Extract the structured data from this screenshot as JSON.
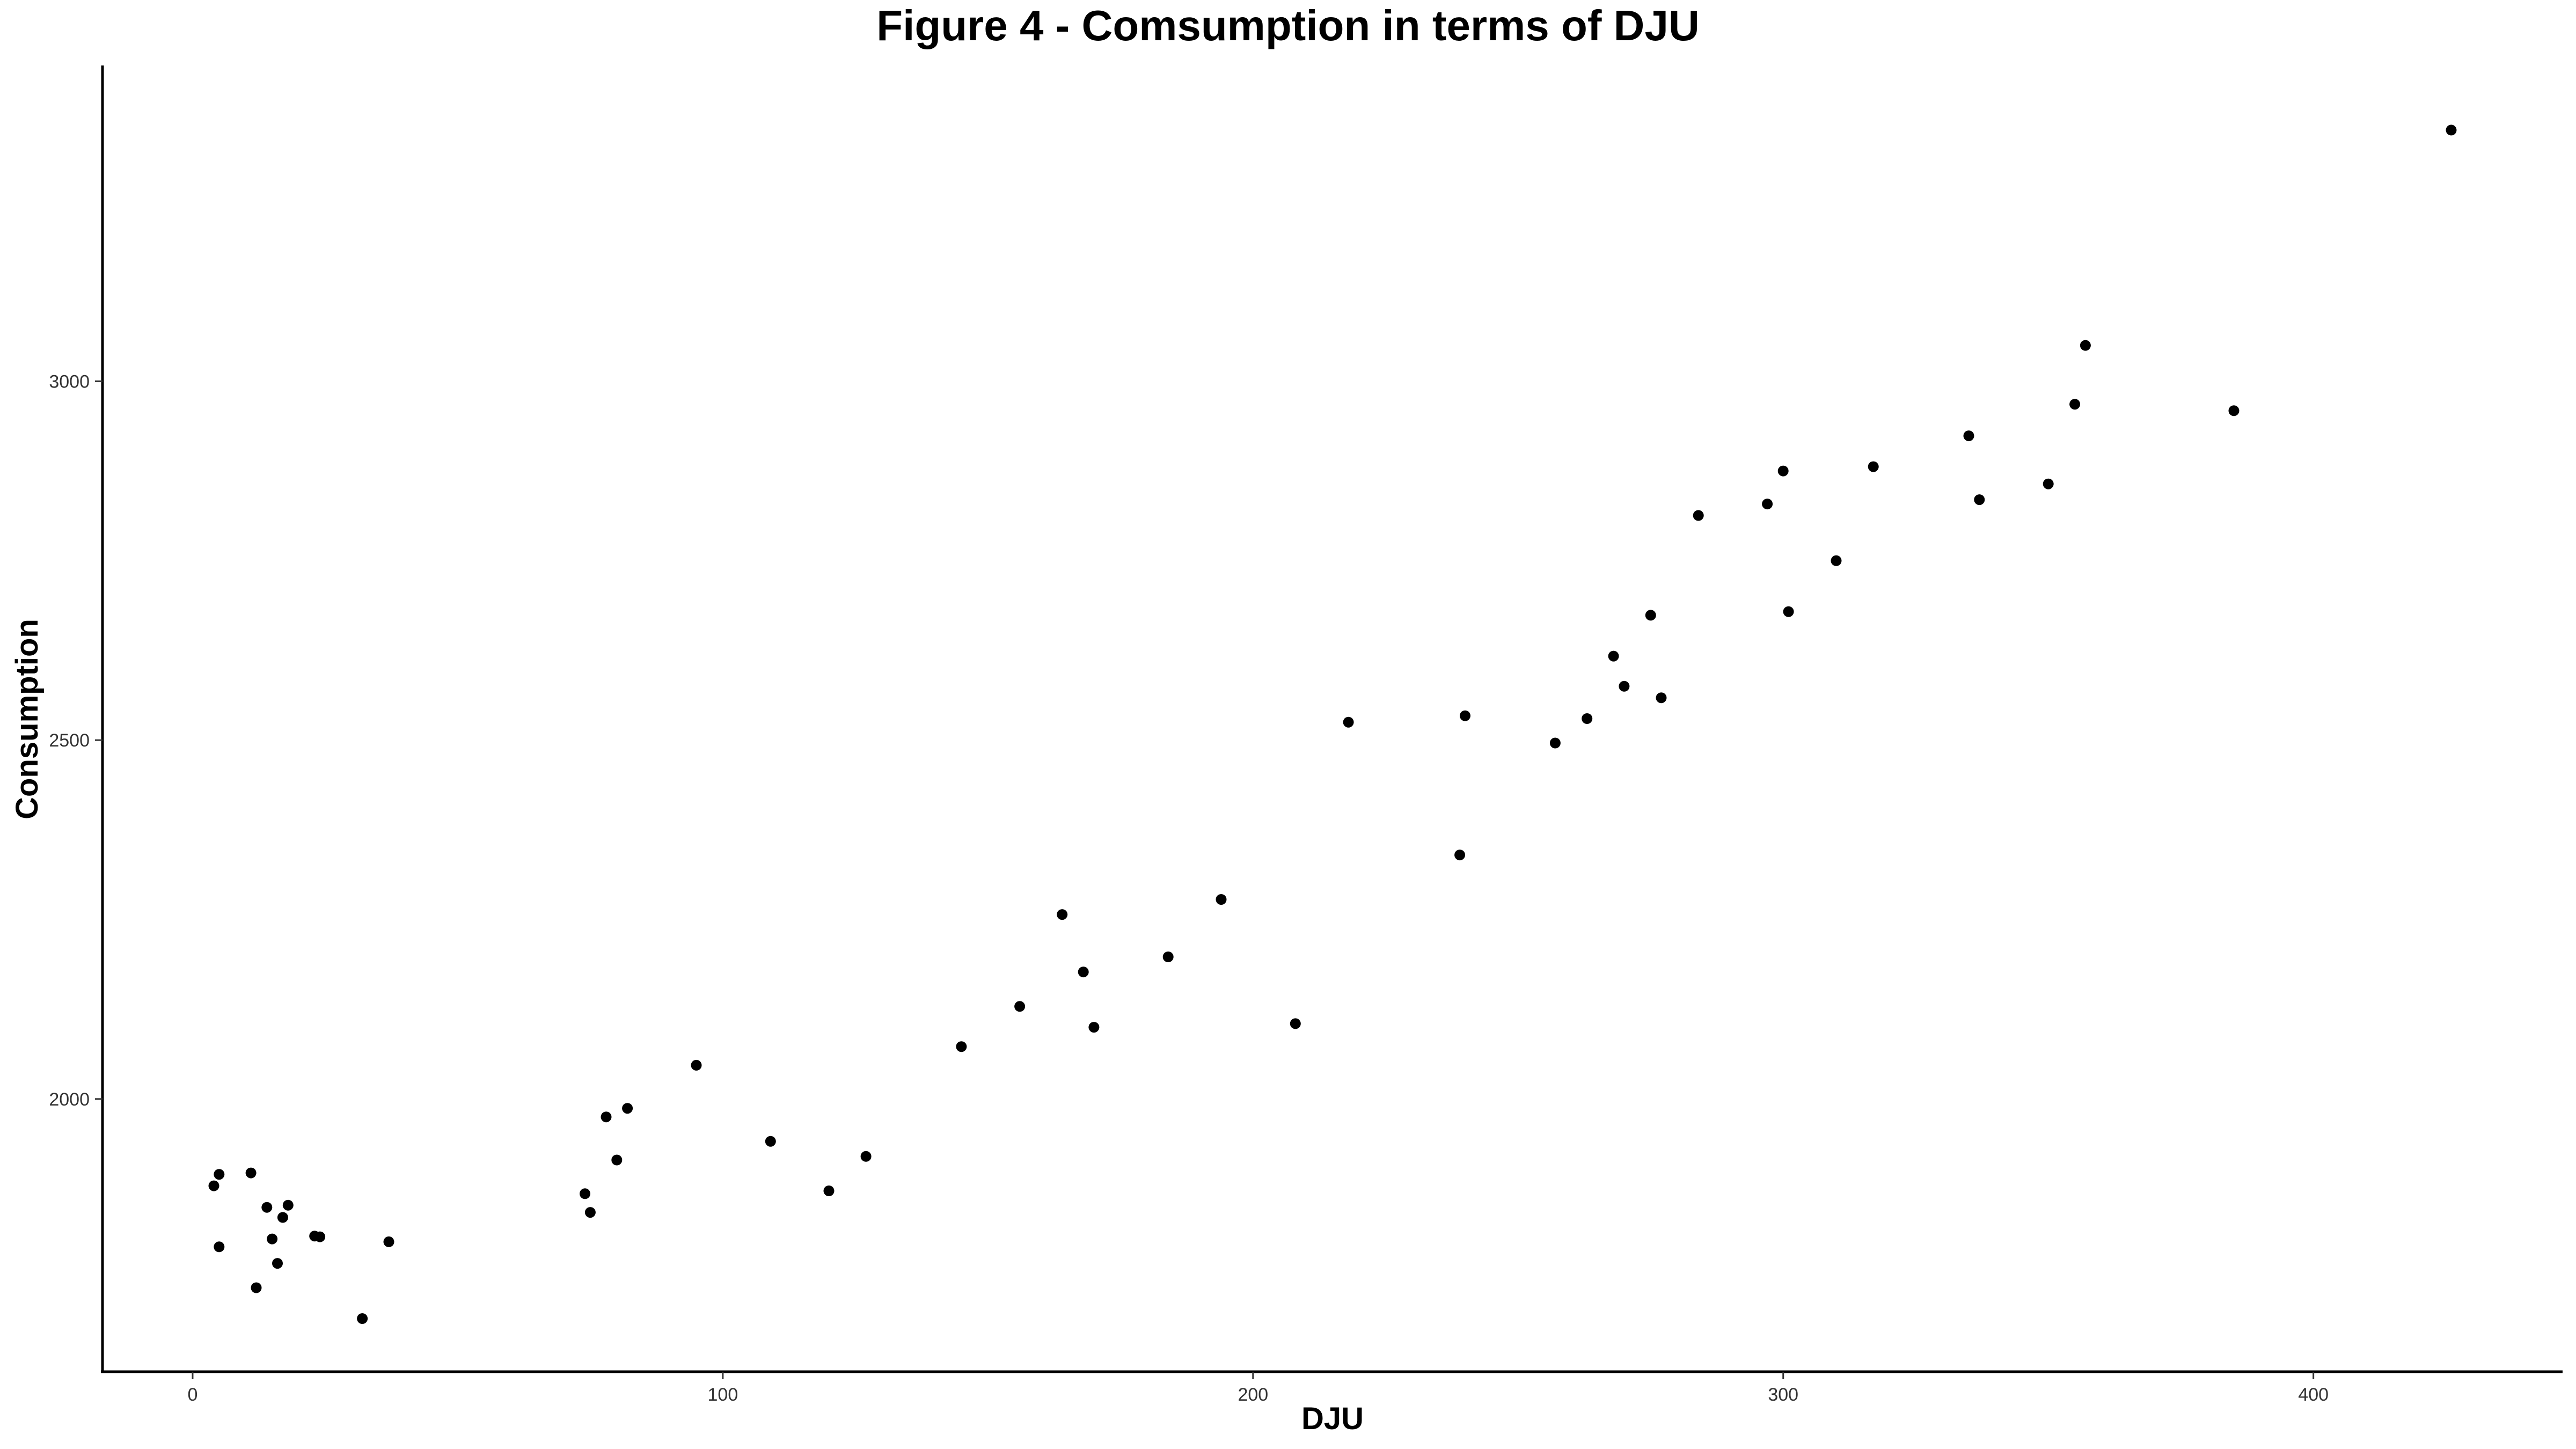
{
  "chart_data": {
    "type": "scatter",
    "title": "Figure 4 - Comsumption in terms of DJU",
    "xlabel": "DJU",
    "ylabel": "Consumption",
    "xlim": [
      -17,
      447
    ],
    "ylim": [
      1620,
      3440
    ],
    "x_ticks": [
      0,
      100,
      200,
      300,
      400
    ],
    "y_ticks": [
      2000,
      2500,
      3000
    ],
    "grid": false,
    "legend": "none",
    "point_color": "#000000",
    "series": [
      {
        "points": [
          [
            4,
            1879
          ],
          [
            5,
            1895
          ],
          [
            5,
            1794
          ],
          [
            11,
            1897
          ],
          [
            12,
            1737
          ],
          [
            14,
            1849
          ],
          [
            15,
            1805
          ],
          [
            16,
            1771
          ],
          [
            17,
            1835
          ],
          [
            18,
            1852
          ],
          [
            23,
            1809
          ],
          [
            24,
            1808
          ],
          [
            32,
            1694
          ],
          [
            37,
            1801
          ],
          [
            74,
            1868
          ],
          [
            75,
            1842
          ],
          [
            78,
            1975
          ],
          [
            80,
            1915
          ],
          [
            82,
            1987
          ],
          [
            95,
            2047
          ],
          [
            109,
            1941
          ],
          [
            120,
            1872
          ],
          [
            127,
            1920
          ],
          [
            145,
            2073
          ],
          [
            156,
            2129
          ],
          [
            164,
            2257
          ],
          [
            168,
            2177
          ],
          [
            170,
            2100
          ],
          [
            184,
            2198
          ],
          [
            194,
            2278
          ],
          [
            208,
            2105
          ],
          [
            218,
            2525
          ],
          [
            239,
            2340
          ],
          [
            240,
            2534
          ],
          [
            257,
            2496
          ],
          [
            263,
            2530
          ],
          [
            268,
            2617
          ],
          [
            270,
            2575
          ],
          [
            275,
            2674
          ],
          [
            277,
            2559
          ],
          [
            284,
            2813
          ],
          [
            297,
            2829
          ],
          [
            300,
            2875
          ],
          [
            301,
            2679
          ],
          [
            310,
            2750
          ],
          [
            317,
            2881
          ],
          [
            335,
            2924
          ],
          [
            337,
            2835
          ],
          [
            350,
            2857
          ],
          [
            355,
            2968
          ],
          [
            357,
            3050
          ],
          [
            385,
            2959
          ],
          [
            426,
            3350
          ]
        ]
      }
    ]
  }
}
